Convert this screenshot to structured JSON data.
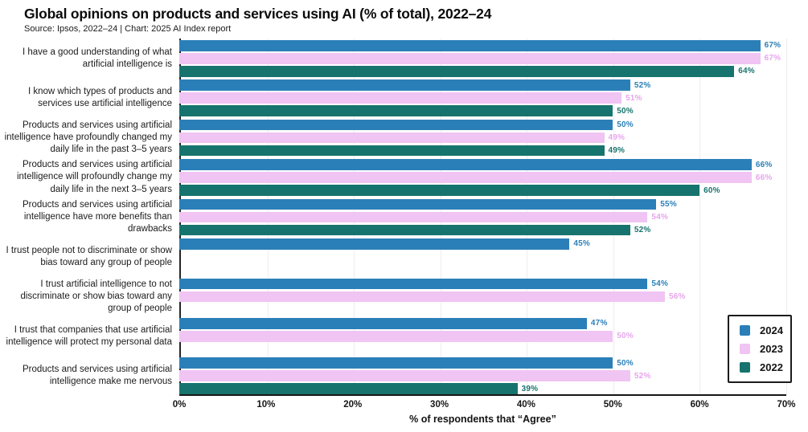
{
  "header": {
    "title": "Global opinions on products and services using AI (% of total), 2022–24",
    "source": "Source: Ipsos, 2022–24 | Chart: 2025 AI Index report"
  },
  "chart_data": {
    "type": "bar",
    "orientation": "horizontal",
    "title": "Global opinions on products and services using AI (% of total), 2022–24",
    "source": "Source: Ipsos, 2022–24 | Chart: 2025 AI Index report",
    "xlabel": "% of respondents that “Agree”",
    "xlim": [
      0,
      70
    ],
    "xticks": [
      "0%",
      "10%",
      "20%",
      "30%",
      "40%",
      "50%",
      "60%",
      "70%"
    ],
    "grid": true,
    "legend_position": "inside-bottom-right",
    "value_label_suffix": "%",
    "categories": [
      "I have a good understanding of what artificial intelligence is",
      "I know which types of products and services use artificial intelligence",
      "Products and services using artificial intelligence have profoundly changed my daily life in the past 3–5 years",
      "Products and services using artificial intelligence will profoundly change my daily life in the next 3–5 years",
      "Products and services using artificial intelligence have more benefits than drawbacks",
      "I trust people not to discriminate or show bias toward any group of people",
      "I trust artificial intelligence to not discriminate or show bias toward any group of people",
      "I trust that companies that use artificial intelligence will protect my personal data",
      "Products and services using artificial intelligence make me nervous"
    ],
    "series": [
      {
        "name": "2024",
        "color": "#2b7fb8",
        "label_color": "#2b7fb8",
        "values": [
          67,
          52,
          50,
          66,
          55,
          45,
          54,
          47,
          50
        ]
      },
      {
        "name": "2023",
        "color": "#f0c4f3",
        "label_color": "#e7a5ec",
        "values": [
          67,
          51,
          49,
          66,
          54,
          null,
          56,
          50,
          52
        ]
      },
      {
        "name": "2022",
        "color": "#17736d",
        "label_color": "#17736d",
        "values": [
          64,
          50,
          49,
          60,
          52,
          null,
          null,
          null,
          39
        ]
      }
    ]
  }
}
